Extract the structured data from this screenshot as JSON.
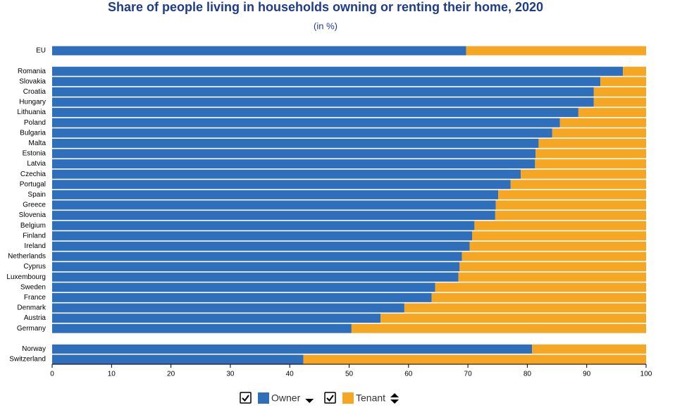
{
  "chart_data": {
    "type": "stacked-bar-horizontal",
    "title": "Share of people living in households owning or renting their home, 2020",
    "subtitle": "(in %)",
    "categories": [
      "EU",
      null,
      "Romania",
      "Slovakia",
      "Croatia",
      "Hungary",
      "Lithuania",
      "Poland",
      "Bulgaria",
      "Malta",
      "Estonia",
      "Latvia",
      "Czechia",
      "Portugal",
      "Spain",
      "Greece",
      "Slovenia",
      "Belgium",
      "Finland",
      "Ireland",
      "Netherlands",
      "Cyprus",
      "Luxembourg",
      "Sweden",
      "France",
      "Denmark",
      "Austria",
      "Germany",
      null,
      "Norway",
      "Switzerland"
    ],
    "series": [
      {
        "name": "Owner",
        "color": "#2f6eba",
        "values": [
          69.7,
          null,
          96.1,
          92.3,
          91.2,
          91.2,
          88.6,
          85.5,
          84.2,
          81.9,
          81.4,
          81.3,
          78.9,
          77.2,
          75.1,
          74.7,
          74.6,
          71.1,
          70.7,
          70.3,
          69.0,
          68.6,
          68.4,
          64.5,
          63.9,
          59.3,
          55.3,
          50.4,
          null,
          80.8,
          42.3
        ]
      },
      {
        "name": "Tenant",
        "color": "#f5a623",
        "values": [
          30.3,
          null,
          3.9,
          7.7,
          8.8,
          8.8,
          11.4,
          14.5,
          15.8,
          18.1,
          18.6,
          18.7,
          21.1,
          22.8,
          24.9,
          25.3,
          25.4,
          28.9,
          29.3,
          29.7,
          31.0,
          31.4,
          31.6,
          35.5,
          36.1,
          40.7,
          44.7,
          49.6,
          null,
          19.2,
          57.7
        ]
      }
    ],
    "xlim": [
      0,
      100
    ],
    "xticks": [
      0,
      10,
      20,
      30,
      40,
      50,
      60,
      70,
      80,
      90,
      100
    ]
  }
}
